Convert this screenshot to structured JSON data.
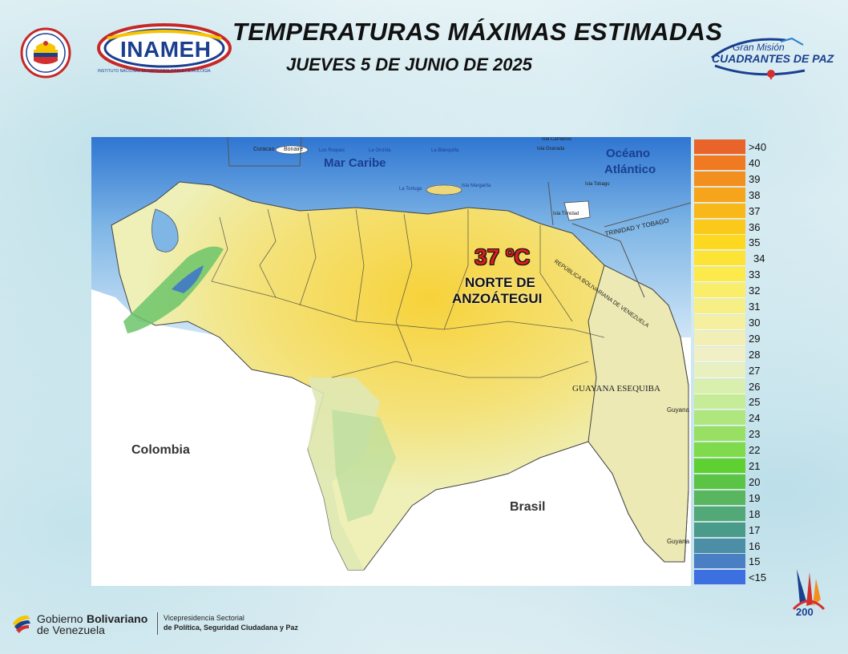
{
  "header": {
    "title": "TEMPERATURAS MÁXIMAS ESTIMADAS",
    "subtitle": "JUEVES 5 DE JUNIO DE 2025",
    "logo_inameh": "INAMEH",
    "logo_inameh_caption": "INSTITUTO NACIONAL DE METEOROLOGÍA E HIDROLOGÍA",
    "logo_cuadrantes_line1": "Gran Misión",
    "logo_cuadrantes_line2": "CUADRANTES DE PAZ"
  },
  "map": {
    "labels": {
      "mar_caribe": "Mar Caribe",
      "oceano": "Océano",
      "atlantico": "Atlántico",
      "colombia": "Colombia",
      "brasil": "Brasil",
      "guayana_esequiba": "GUAYANA ESEQUIBA",
      "guyana_1": "Guyana",
      "guyana_2": "Guyana",
      "trinidad_tobago": "TRINIDAD Y TOBAGO",
      "rbv_line": "REPÚBLICA BOLIVARIANA DE VENEZUELA",
      "curacao": "Curacao",
      "bonaire": "Bonaire",
      "los_roques": "Los Roques",
      "la_orchila": "La Orchila",
      "la_blanquilla": "La Blanquilla",
      "la_tortuga": "La Tortuga",
      "isla_margarita": "Isla Margarita",
      "isla_carriacou": "Isla Carriacou",
      "isla_granada": "Isla Granada",
      "isla_tobago": "Isla Tobago",
      "isla_trinidad": "Isla Trinidad"
    },
    "highlight": {
      "value": "37 ºC",
      "line1": "NORTE DE",
      "line2": "ANZOÁTEGUI"
    }
  },
  "legend": {
    "items": [
      {
        "label": ">40",
        "color": "#e8642a"
      },
      {
        "label": "40",
        "color": "#ef7a22"
      },
      {
        "label": "39",
        "color": "#f28f1f"
      },
      {
        "label": "38",
        "color": "#f5a41c"
      },
      {
        "label": "37",
        "color": "#f8b81a"
      },
      {
        "label": "36",
        "color": "#fbc91c"
      },
      {
        "label": "35",
        "color": "#fdd820"
      },
      {
        "label": "34",
        "color": "#fde336"
      },
      {
        "label": "33",
        "color": "#fcea4c"
      },
      {
        "label": "32",
        "color": "#f9ed6a"
      },
      {
        "label": "31",
        "color": "#f6ef86"
      },
      {
        "label": "30",
        "color": "#f4f0a0"
      },
      {
        "label": "29",
        "color": "#f2efb6"
      },
      {
        "label": "28",
        "color": "#f0efc6"
      },
      {
        "label": "27",
        "color": "#e8f0c0"
      },
      {
        "label": "26",
        "color": "#d9efae"
      },
      {
        "label": "25",
        "color": "#c6ec98"
      },
      {
        "label": "24",
        "color": "#b0e67e"
      },
      {
        "label": "23",
        "color": "#98e064"
      },
      {
        "label": "22",
        "color": "#7fda4c"
      },
      {
        "label": "21",
        "color": "#5fd032"
      },
      {
        "label": "20",
        "color": "#5cc444"
      },
      {
        "label": "19",
        "color": "#5ab65e"
      },
      {
        "label": "18",
        "color": "#52a876"
      },
      {
        "label": "17",
        "color": "#4b9b8a"
      },
      {
        "label": "16",
        "color": "#4b8ea6"
      },
      {
        "label": "15",
        "color": "#4a7fc4"
      },
      {
        "label": "<15",
        "color": "#3c6fe0"
      }
    ]
  },
  "footer": {
    "gob_line1_a": "Gobierno ",
    "gob_line1_b": "Bolivariano",
    "gob_line2": "de Venezuela",
    "vice_line1": "Vicepresidencia Sectorial",
    "vice_line2": "de Política, Seguridad Ciudadana y Paz",
    "bicentenario": "200"
  }
}
